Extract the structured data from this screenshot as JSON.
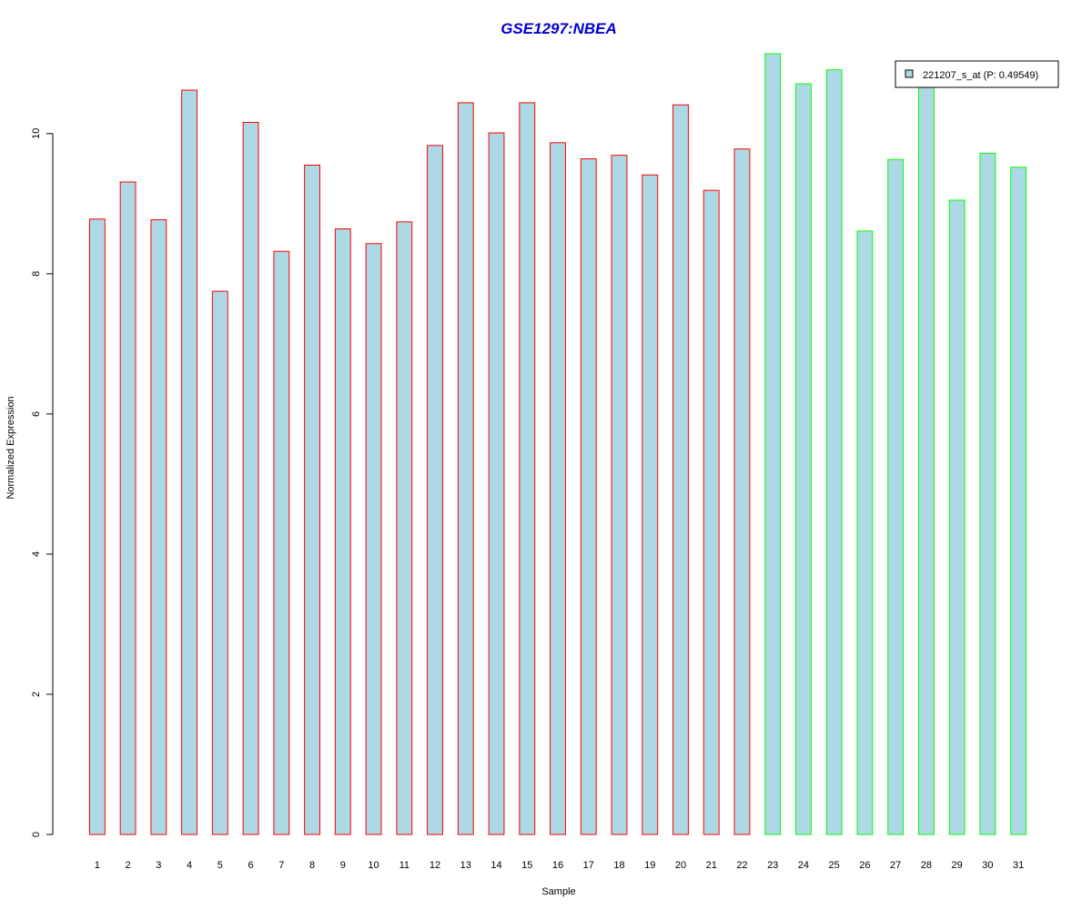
{
  "chart_data": {
    "type": "bar",
    "title": "GSE1297:NBEA",
    "xlabel": "Sample",
    "ylabel": "Normalized Expression",
    "categories": [
      "1",
      "2",
      "3",
      "4",
      "5",
      "6",
      "7",
      "8",
      "9",
      "10",
      "11",
      "12",
      "13",
      "14",
      "15",
      "16",
      "17",
      "18",
      "19",
      "20",
      "21",
      "22",
      "23",
      "24",
      "25",
      "26",
      "27",
      "28",
      "29",
      "30",
      "31"
    ],
    "series": [
      {
        "name": "221207_s_at (P: 0.49549)",
        "values": [
          8.78,
          9.31,
          8.77,
          10.62,
          7.75,
          10.16,
          8.32,
          9.55,
          8.64,
          8.43,
          8.74,
          9.83,
          10.44,
          10.01,
          10.44,
          9.87,
          9.64,
          9.69,
          9.41,
          10.41,
          9.19,
          9.78,
          11.14,
          10.71,
          10.91,
          8.61,
          9.63,
          10.71,
          9.05,
          9.72,
          9.52
        ]
      }
    ],
    "groups": [
      {
        "samples": [
          1,
          22
        ],
        "border_color": "#ff0000"
      },
      {
        "samples": [
          23,
          31
        ],
        "border_color": "#00ff00"
      }
    ],
    "yticks": [
      0,
      2,
      4,
      6,
      8,
      10
    ],
    "ylim": [
      0,
      11.14
    ],
    "grid": false,
    "legend_position": "top-right",
    "colors": {
      "title": "#0000cc",
      "bar_fill": "#add8e6",
      "axis": "#000000"
    }
  }
}
